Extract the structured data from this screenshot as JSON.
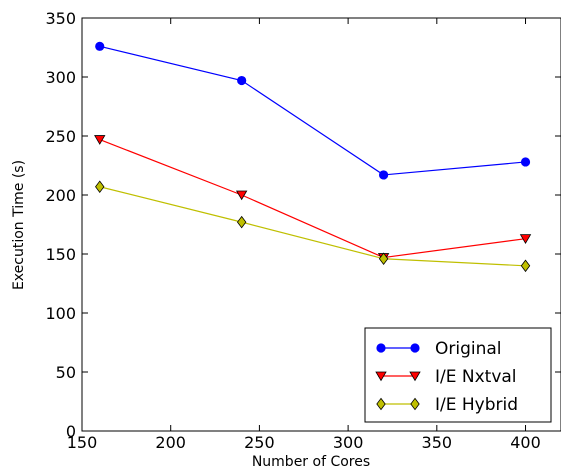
{
  "chart_data": {
    "type": "line",
    "title": "",
    "xlabel": "Number of Cores",
    "ylabel": "Execution Time (s)",
    "xlim": [
      150,
      420
    ],
    "ylim": [
      0,
      350
    ],
    "x_ticks": [
      150,
      200,
      250,
      300,
      350,
      400
    ],
    "y_ticks": [
      0,
      50,
      100,
      150,
      200,
      250,
      300,
      350
    ],
    "grid": false,
    "legend_position": "lower-right",
    "x": [
      160,
      240,
      320,
      400
    ],
    "series": [
      {
        "name": "Original",
        "values": [
          326,
          297,
          217,
          228
        ],
        "color": "#0000ff",
        "marker": "circle"
      },
      {
        "name": "I/E Nxtval",
        "values": [
          247,
          200,
          147,
          163
        ],
        "color": "#ff0000",
        "marker": "triangle-down"
      },
      {
        "name": "I/E Hybrid",
        "values": [
          207,
          177,
          146,
          140
        ],
        "color": "#bfbf00",
        "marker": "diamond"
      }
    ]
  }
}
